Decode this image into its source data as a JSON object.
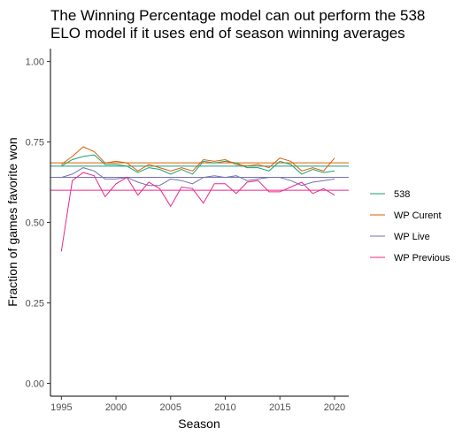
{
  "chart_data": {
    "type": "line",
    "title": "The Winning Percentage model can out perform the 538\nELO model if it uses end of season winning averages",
    "xlabel": "Season",
    "ylabel": "Fraction of games favorite won",
    "xlim": [
      1994.0,
      2021.3
    ],
    "ylim": [
      -0.04,
      1.04
    ],
    "xticks": [
      1995,
      2000,
      2005,
      2010,
      2015,
      2020
    ],
    "yticks": [
      0.0,
      0.25,
      0.5,
      0.75,
      1.0
    ],
    "ytick_labels": [
      "0.00",
      "0.25",
      "0.50",
      "0.75",
      "1.00"
    ],
    "grid": false,
    "legend_position": "right",
    "x": [
      1995,
      1996,
      1997,
      1998,
      1999,
      2000,
      2001,
      2002,
      2003,
      2004,
      2005,
      2006,
      2007,
      2008,
      2009,
      2010,
      2011,
      2012,
      2013,
      2014,
      2015,
      2016,
      2017,
      2018,
      2019,
      2020
    ],
    "series": [
      {
        "name": "538",
        "color": "#1b9e77",
        "values": [
          0.675,
          0.695,
          0.705,
          0.71,
          0.68,
          0.68,
          0.675,
          0.655,
          0.67,
          0.665,
          0.65,
          0.665,
          0.65,
          0.69,
          0.685,
          0.69,
          0.685,
          0.67,
          0.67,
          0.66,
          0.69,
          0.68,
          0.65,
          0.665,
          0.655,
          0.66
        ],
        "mean": 0.675
      },
      {
        "name": "WP Curent",
        "color": "#d95f02",
        "values": [
          0.68,
          0.705,
          0.735,
          0.72,
          0.685,
          0.69,
          0.685,
          0.66,
          0.68,
          0.67,
          0.66,
          0.67,
          0.66,
          0.695,
          0.69,
          0.695,
          0.68,
          0.675,
          0.68,
          0.67,
          0.7,
          0.69,
          0.66,
          0.67,
          0.66,
          0.7
        ],
        "mean": 0.685
      },
      {
        "name": "WP Live",
        "color": "#7570b3",
        "values": [
          0.64,
          0.65,
          0.67,
          0.66,
          0.635,
          0.635,
          0.64,
          0.625,
          0.615,
          0.615,
          0.635,
          0.63,
          0.62,
          0.64,
          0.645,
          0.64,
          0.645,
          0.63,
          0.635,
          0.64,
          0.64,
          0.63,
          0.615,
          0.625,
          0.63,
          0.635
        ],
        "mean": 0.64
      },
      {
        "name": "WP Previous",
        "color": "#e7298a",
        "values": [
          0.41,
          0.63,
          0.655,
          0.645,
          0.58,
          0.62,
          0.64,
          0.585,
          0.625,
          0.605,
          0.55,
          0.61,
          0.605,
          0.56,
          0.62,
          0.62,
          0.59,
          0.625,
          0.63,
          0.595,
          0.595,
          0.61,
          0.625,
          0.59,
          0.605,
          0.585
        ],
        "mean": 0.6
      }
    ]
  }
}
